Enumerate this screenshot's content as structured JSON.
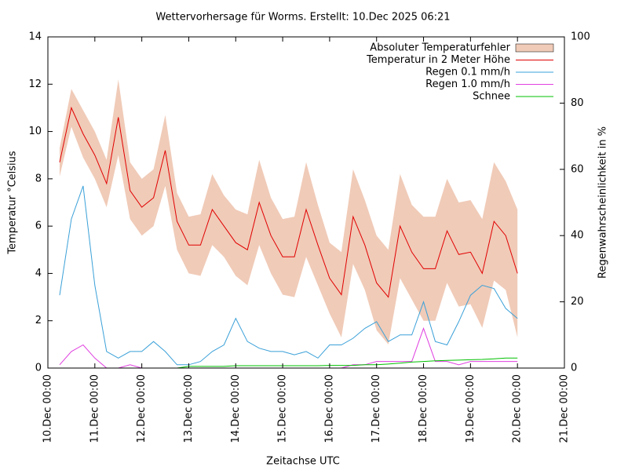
{
  "chart_data": {
    "type": "line",
    "title": "Wettervorhersage für Worms. Erstellt: 10.Dec 2025 06:21",
    "x_label": "Zeitachse UTC",
    "y_label": "Temperatur °Celsius",
    "y2_label": "Regenwahrscheinlichkeit in %",
    "xlim": [
      "10.Dec 00:00",
      "21.Dec 00:00"
    ],
    "xticks": [
      "10.Dec 00:00",
      "11.Dec 00:00",
      "12.Dec 00:00",
      "13.Dec 00:00",
      "14.Dec 00:00",
      "15.Dec 00:00",
      "16.Dec 00:00",
      "17.Dec 00:00",
      "18.Dec 00:00",
      "19.Dec 00:00",
      "20.Dec 00:00",
      "21.Dec 00:00"
    ],
    "ylim": [
      0,
      14
    ],
    "yticks": [
      0,
      2,
      4,
      6,
      8,
      10,
      12,
      14
    ],
    "y2lim": [
      0,
      100
    ],
    "y2ticks": [
      0,
      20,
      40,
      60,
      80,
      100
    ],
    "legend": "top-right",
    "x": [
      "10.Dec 06:00",
      "10.Dec 12:00",
      "10.Dec 18:00",
      "11.Dec 00:00",
      "11.Dec 06:00",
      "11.Dec 12:00",
      "11.Dec 18:00",
      "12.Dec 00:00",
      "12.Dec 06:00",
      "12.Dec 12:00",
      "12.Dec 18:00",
      "13.Dec 00:00",
      "13.Dec 06:00",
      "13.Dec 12:00",
      "13.Dec 18:00",
      "14.Dec 00:00",
      "14.Dec 06:00",
      "14.Dec 12:00",
      "14.Dec 18:00",
      "15.Dec 00:00",
      "15.Dec 06:00",
      "15.Dec 12:00",
      "15.Dec 18:00",
      "16.Dec 00:00",
      "16.Dec 06:00",
      "16.Dec 12:00",
      "16.Dec 18:00",
      "17.Dec 00:00",
      "17.Dec 06:00",
      "17.Dec 12:00",
      "17.Dec 18:00",
      "18.Dec 00:00",
      "18.Dec 06:00",
      "18.Dec 12:00",
      "18.Dec 18:00",
      "19.Dec 00:00",
      "19.Dec 06:00",
      "19.Dec 12:00",
      "19.Dec 18:00",
      "20.Dec 00:00"
    ],
    "series": [
      {
        "name": "Absoluter Temperaturfehler",
        "color": "#f0cbb8",
        "band_around": 1,
        "values": [
          0.6,
          0.8,
          1.0,
          1.0,
          1.0,
          1.6,
          1.2,
          1.2,
          1.2,
          1.5,
          1.2,
          1.2,
          1.3,
          1.5,
          1.3,
          1.4,
          1.5,
          1.8,
          1.6,
          1.6,
          1.7,
          2.0,
          1.7,
          1.5,
          1.8,
          2.0,
          1.9,
          2.0,
          2.0,
          2.2,
          2.0,
          2.2,
          2.2,
          2.2,
          2.2,
          2.2,
          2.3,
          2.5,
          2.3,
          2.7
        ]
      },
      {
        "name": "Temperatur in 2 Meter Höhe",
        "color": "#e00000",
        "values": [
          8.7,
          11.0,
          9.9,
          9.0,
          7.8,
          10.6,
          7.5,
          6.8,
          7.2,
          9.2,
          6.2,
          5.2,
          5.2,
          6.7,
          6.0,
          5.3,
          5.0,
          7.0,
          5.6,
          4.7,
          4.7,
          6.7,
          5.2,
          3.8,
          3.1,
          6.4,
          5.2,
          3.6,
          3.0,
          6.0,
          4.9,
          4.2,
          4.2,
          5.8,
          4.8,
          4.9,
          4.0,
          6.2,
          5.6,
          4.0
        ]
      },
      {
        "name": "Regen 0.1 mm/h",
        "color": "#3aa0d8",
        "axis": "y2",
        "values": [
          22,
          45,
          55,
          25,
          5,
          3,
          5,
          5,
          8,
          5,
          1,
          1,
          2,
          5,
          7,
          15,
          8,
          6,
          5,
          5,
          4,
          5,
          3,
          7,
          7,
          9,
          12,
          14,
          8,
          10,
          10,
          20,
          8,
          7,
          14,
          22,
          25,
          24,
          18,
          15
        ]
      },
      {
        "name": "Regen 1.0 mm/h",
        "color": "#e040e0",
        "axis": "y2",
        "values": [
          1,
          5,
          7,
          3,
          0,
          0,
          1,
          0,
          0,
          0,
          0,
          0,
          0,
          0,
          0,
          0,
          0,
          0,
          0,
          0,
          0,
          0,
          0,
          0,
          0,
          1,
          1,
          2,
          2,
          2,
          2,
          12,
          2,
          2,
          1,
          2,
          2,
          2,
          2,
          2
        ]
      },
      {
        "name": "Schnee",
        "color": "#00c000",
        "axis": "y2",
        "values": [
          0,
          0,
          0,
          0,
          0,
          0,
          0,
          0,
          0,
          0,
          0,
          0.5,
          0.5,
          0.5,
          0.5,
          0.7,
          0.7,
          0.7,
          0.7,
          0.7,
          0.7,
          0.7,
          0.7,
          0.8,
          0.8,
          0.8,
          1.0,
          1.0,
          1.2,
          1.5,
          1.8,
          2.0,
          2.2,
          2.3,
          2.4,
          2.5,
          2.6,
          2.8,
          3.0,
          3.0
        ]
      }
    ]
  }
}
